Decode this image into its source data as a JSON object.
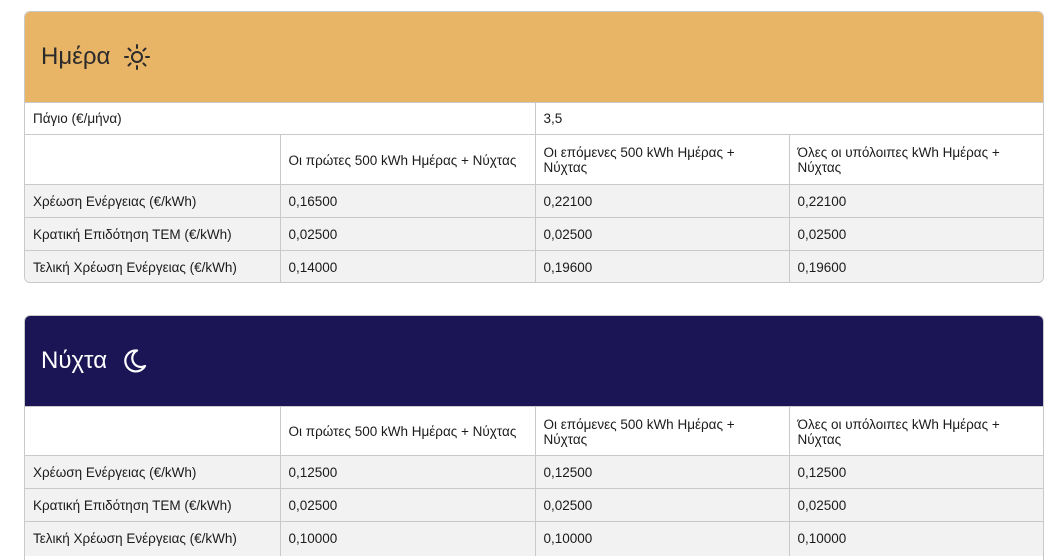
{
  "day": {
    "title": "Ημέρα",
    "icon": "sun-icon",
    "header_color": "#e8b465",
    "fixed_charge": {
      "label": "Πάγιο (€/μήνα)",
      "value": "3,5"
    },
    "columns": [
      "Οι πρώτες 500 kWh Ημέρας + Νύχτας",
      "Οι επόμενες 500 kWh Ημέρας + Νύχτας",
      "Όλες οι υπόλοιπες kWh Ημέρας + Νύχτας"
    ],
    "rows": [
      {
        "label": "Χρέωση Ενέργειας (€/kWh)",
        "values": [
          "0,16500",
          "0,22100",
          "0,22100"
        ]
      },
      {
        "label": "Κρατική Επιδότηση ΤΕΜ (€/kWh)",
        "values": [
          "0,02500",
          "0,02500",
          "0,02500"
        ]
      },
      {
        "label": "Τελική Χρέωση Ενέργειας (€/kWh)",
        "values": [
          "0,14000",
          "0,19600",
          "0,19600"
        ]
      }
    ]
  },
  "night": {
    "title": "Νύχτα",
    "icon": "moon-icon",
    "header_color": "#1c1555",
    "columns": [
      "Οι πρώτες 500 kWh Ημέρας + Νύχτας",
      "Οι επόμενες 500 kWh Ημέρας + Νύχτας",
      "Όλες οι υπόλοιπες kWh Ημέρας + Νύχτας"
    ],
    "rows": [
      {
        "label": "Χρέωση Ενέργειας (€/kWh)",
        "values": [
          "0,12500",
          "0,12500",
          "0,12500"
        ]
      },
      {
        "label": "Κρατική Επιδότηση ΤΕΜ (€/kWh)",
        "values": [
          "0,02500",
          "0,02500",
          "0,02500"
        ]
      },
      {
        "label": "Τελική Χρέωση Ενέργειας (€/kWh)",
        "values": [
          "0,10000",
          "0,10000",
          "0,10000"
        ]
      }
    ]
  }
}
